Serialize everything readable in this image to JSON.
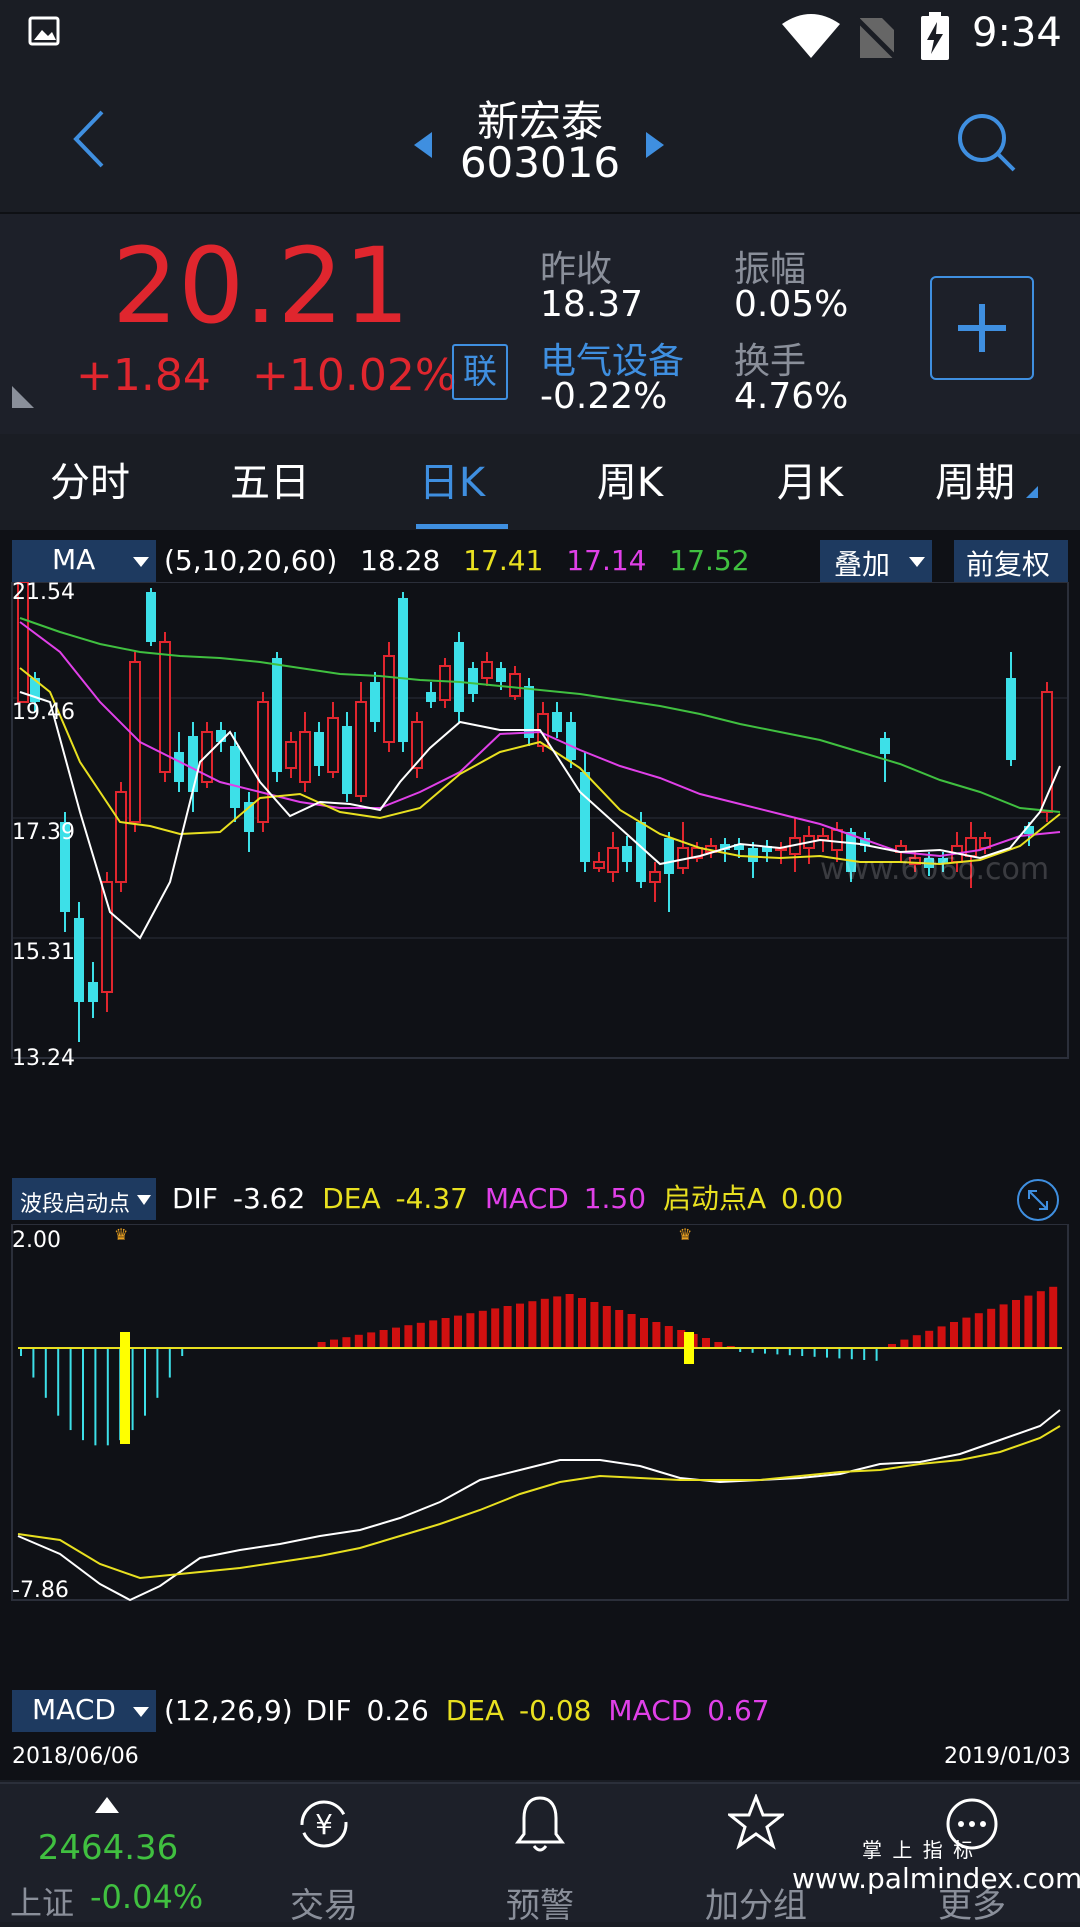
{
  "status_bar": {
    "time": "9:34"
  },
  "header": {
    "stock_name": "新宏泰",
    "stock_code": "603016"
  },
  "quote": {
    "price": "20.21",
    "change": "+1.84",
    "change_pct": "+10.02%",
    "lian_badge": "联",
    "prev_close_label": "昨收",
    "prev_close": "18.37",
    "amplitude_label": "振幅",
    "amplitude": "0.05%",
    "sector_label": "电气设备",
    "sector_change": "-0.22%",
    "turnover_label": "换手",
    "turnover": "4.76%"
  },
  "tabs": [
    {
      "label": "分时"
    },
    {
      "label": "五日"
    },
    {
      "label": "日K",
      "active": true
    },
    {
      "label": "周K"
    },
    {
      "label": "月K"
    },
    {
      "label": "周期"
    }
  ],
  "ma_bar": {
    "indicator": "MA",
    "params": "(5,10,20,60)",
    "ma5": "18.28",
    "ma10": "17.41",
    "ma20": "17.14",
    "ma60": "17.52",
    "overlay": "叠加",
    "adjust": "前复权"
  },
  "price_axis": [
    "21.54",
    "19.46",
    "17.39",
    "15.31",
    "13.24"
  ],
  "watermark": "www.606o.com",
  "wave_bar": {
    "indicator": "波段启动点",
    "dif_label": "DIF",
    "dif": "-3.62",
    "dea_label": "DEA",
    "dea": "-4.37",
    "macd_label": "MACD",
    "macd": "1.50",
    "start_label": "启动点A",
    "start": "0.00"
  },
  "macd_axis": {
    "top": "2.00",
    "bottom": "-7.86"
  },
  "macd_bar": {
    "indicator": "MACD",
    "params": "(12,26,9)",
    "dif_label": "DIF",
    "dif": "0.26",
    "dea_label": "DEA",
    "dea": "-0.08",
    "macd_label": "MACD",
    "macd": "0.67"
  },
  "dates": {
    "start": "2018/06/06",
    "end": "2019/01/03"
  },
  "bottom_nav": {
    "index_value": "2464.36",
    "index_name": "上证",
    "index_change": "-0.04%",
    "items": [
      {
        "label": "交易"
      },
      {
        "label": "预警"
      },
      {
        "label": "加分组"
      },
      {
        "label": "更多"
      }
    ]
  },
  "footer_watermark": {
    "cn": "掌 上 指 标",
    "url": "www.palmindex.com"
  },
  "colors": {
    "up": "#e0262e",
    "down": "#3de0e8",
    "accent": "#3f8fe0",
    "ma5": "#ffffff",
    "ma10": "#e8e020",
    "ma20": "#e040e8",
    "ma60": "#40c040"
  }
}
